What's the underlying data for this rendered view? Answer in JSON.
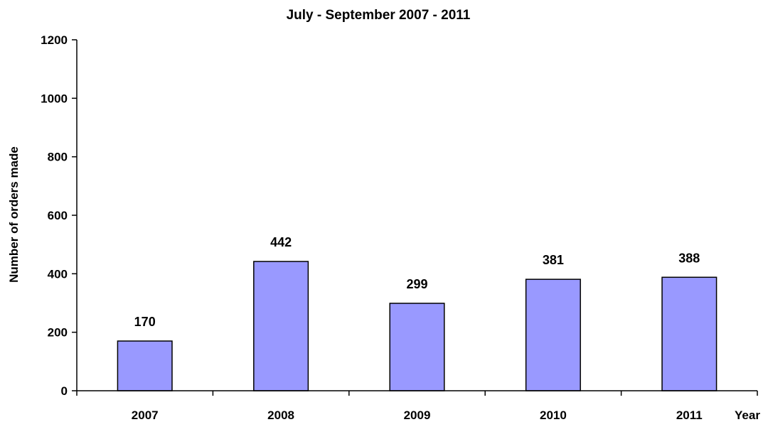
{
  "chart_data": {
    "type": "bar",
    "title": "July - September  2007 - 2011",
    "xlabel": "Year",
    "ylabel": "Number of orders made",
    "categories": [
      "2007",
      "2008",
      "2009",
      "2010",
      "2011"
    ],
    "values": [
      170,
      442,
      299,
      381,
      388
    ],
    "ylim": [
      0,
      1200
    ],
    "yticks": [
      0,
      200,
      400,
      600,
      800,
      1000,
      1200
    ],
    "grid": false,
    "legend": "none",
    "bar_color": "#9999FF",
    "bar_edge_color": "#000000"
  }
}
